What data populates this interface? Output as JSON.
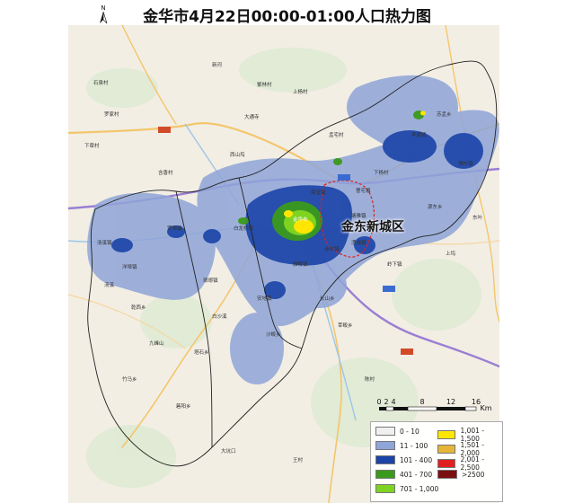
{
  "title": "金华市4月22日00:00-01:00人口热力图",
  "north_label": "N",
  "district_label": "金东新城区",
  "scale": {
    "ticks": [
      "0",
      "2",
      "4",
      "8",
      "12",
      "16"
    ],
    "unit": "Km"
  },
  "legend": {
    "items": [
      {
        "label": "0 - 10",
        "color": "#f0f0f0"
      },
      {
        "label": "11 - 100",
        "color": "#8fa5d8"
      },
      {
        "label": "101 - 400",
        "color": "#1b44a8"
      },
      {
        "label": "401 - 700",
        "color": "#3a9a1c"
      },
      {
        "label": "701 - 1,000",
        "color": "#7ed321"
      },
      {
        "label": "1,001 - 1,500",
        "color": "#ffe600"
      },
      {
        "label": "1,501 - 2,000",
        "color": "#e5b53a"
      },
      {
        "label": "2,001 - 2,500",
        "color": "#e02020"
      },
      {
        "label": ">2500",
        "color": "#7a0f0f"
      }
    ]
  },
  "places": [
    "石泉村",
    "罗家村",
    "下章村",
    "新河",
    "紫林村",
    "上杨村",
    "大通寺",
    "西山坞",
    "孟宅村",
    "下杨村",
    "蒋堂镇",
    "塘雅镇",
    "孝顺镇",
    "傅村镇",
    "金华市",
    "白龙桥镇",
    "罗埠镇",
    "汤溪镇",
    "洋埠镇",
    "琅琊镇",
    "安地镇",
    "雅畈镇",
    "岭下镇",
    "澧浦镇",
    "赤松镇",
    "曹宅镇",
    "源东乡",
    "沙畈乡",
    "塔石乡",
    "箬阳乡",
    "苏孟乡",
    "乾西乡",
    "竹马乡",
    "长山乡",
    "莘畈乡",
    "含香村",
    "白沙溪",
    "九峰山",
    "汤溪",
    "大坑口",
    "王村",
    "陈村",
    "上坞",
    "东叶"
  ]
}
